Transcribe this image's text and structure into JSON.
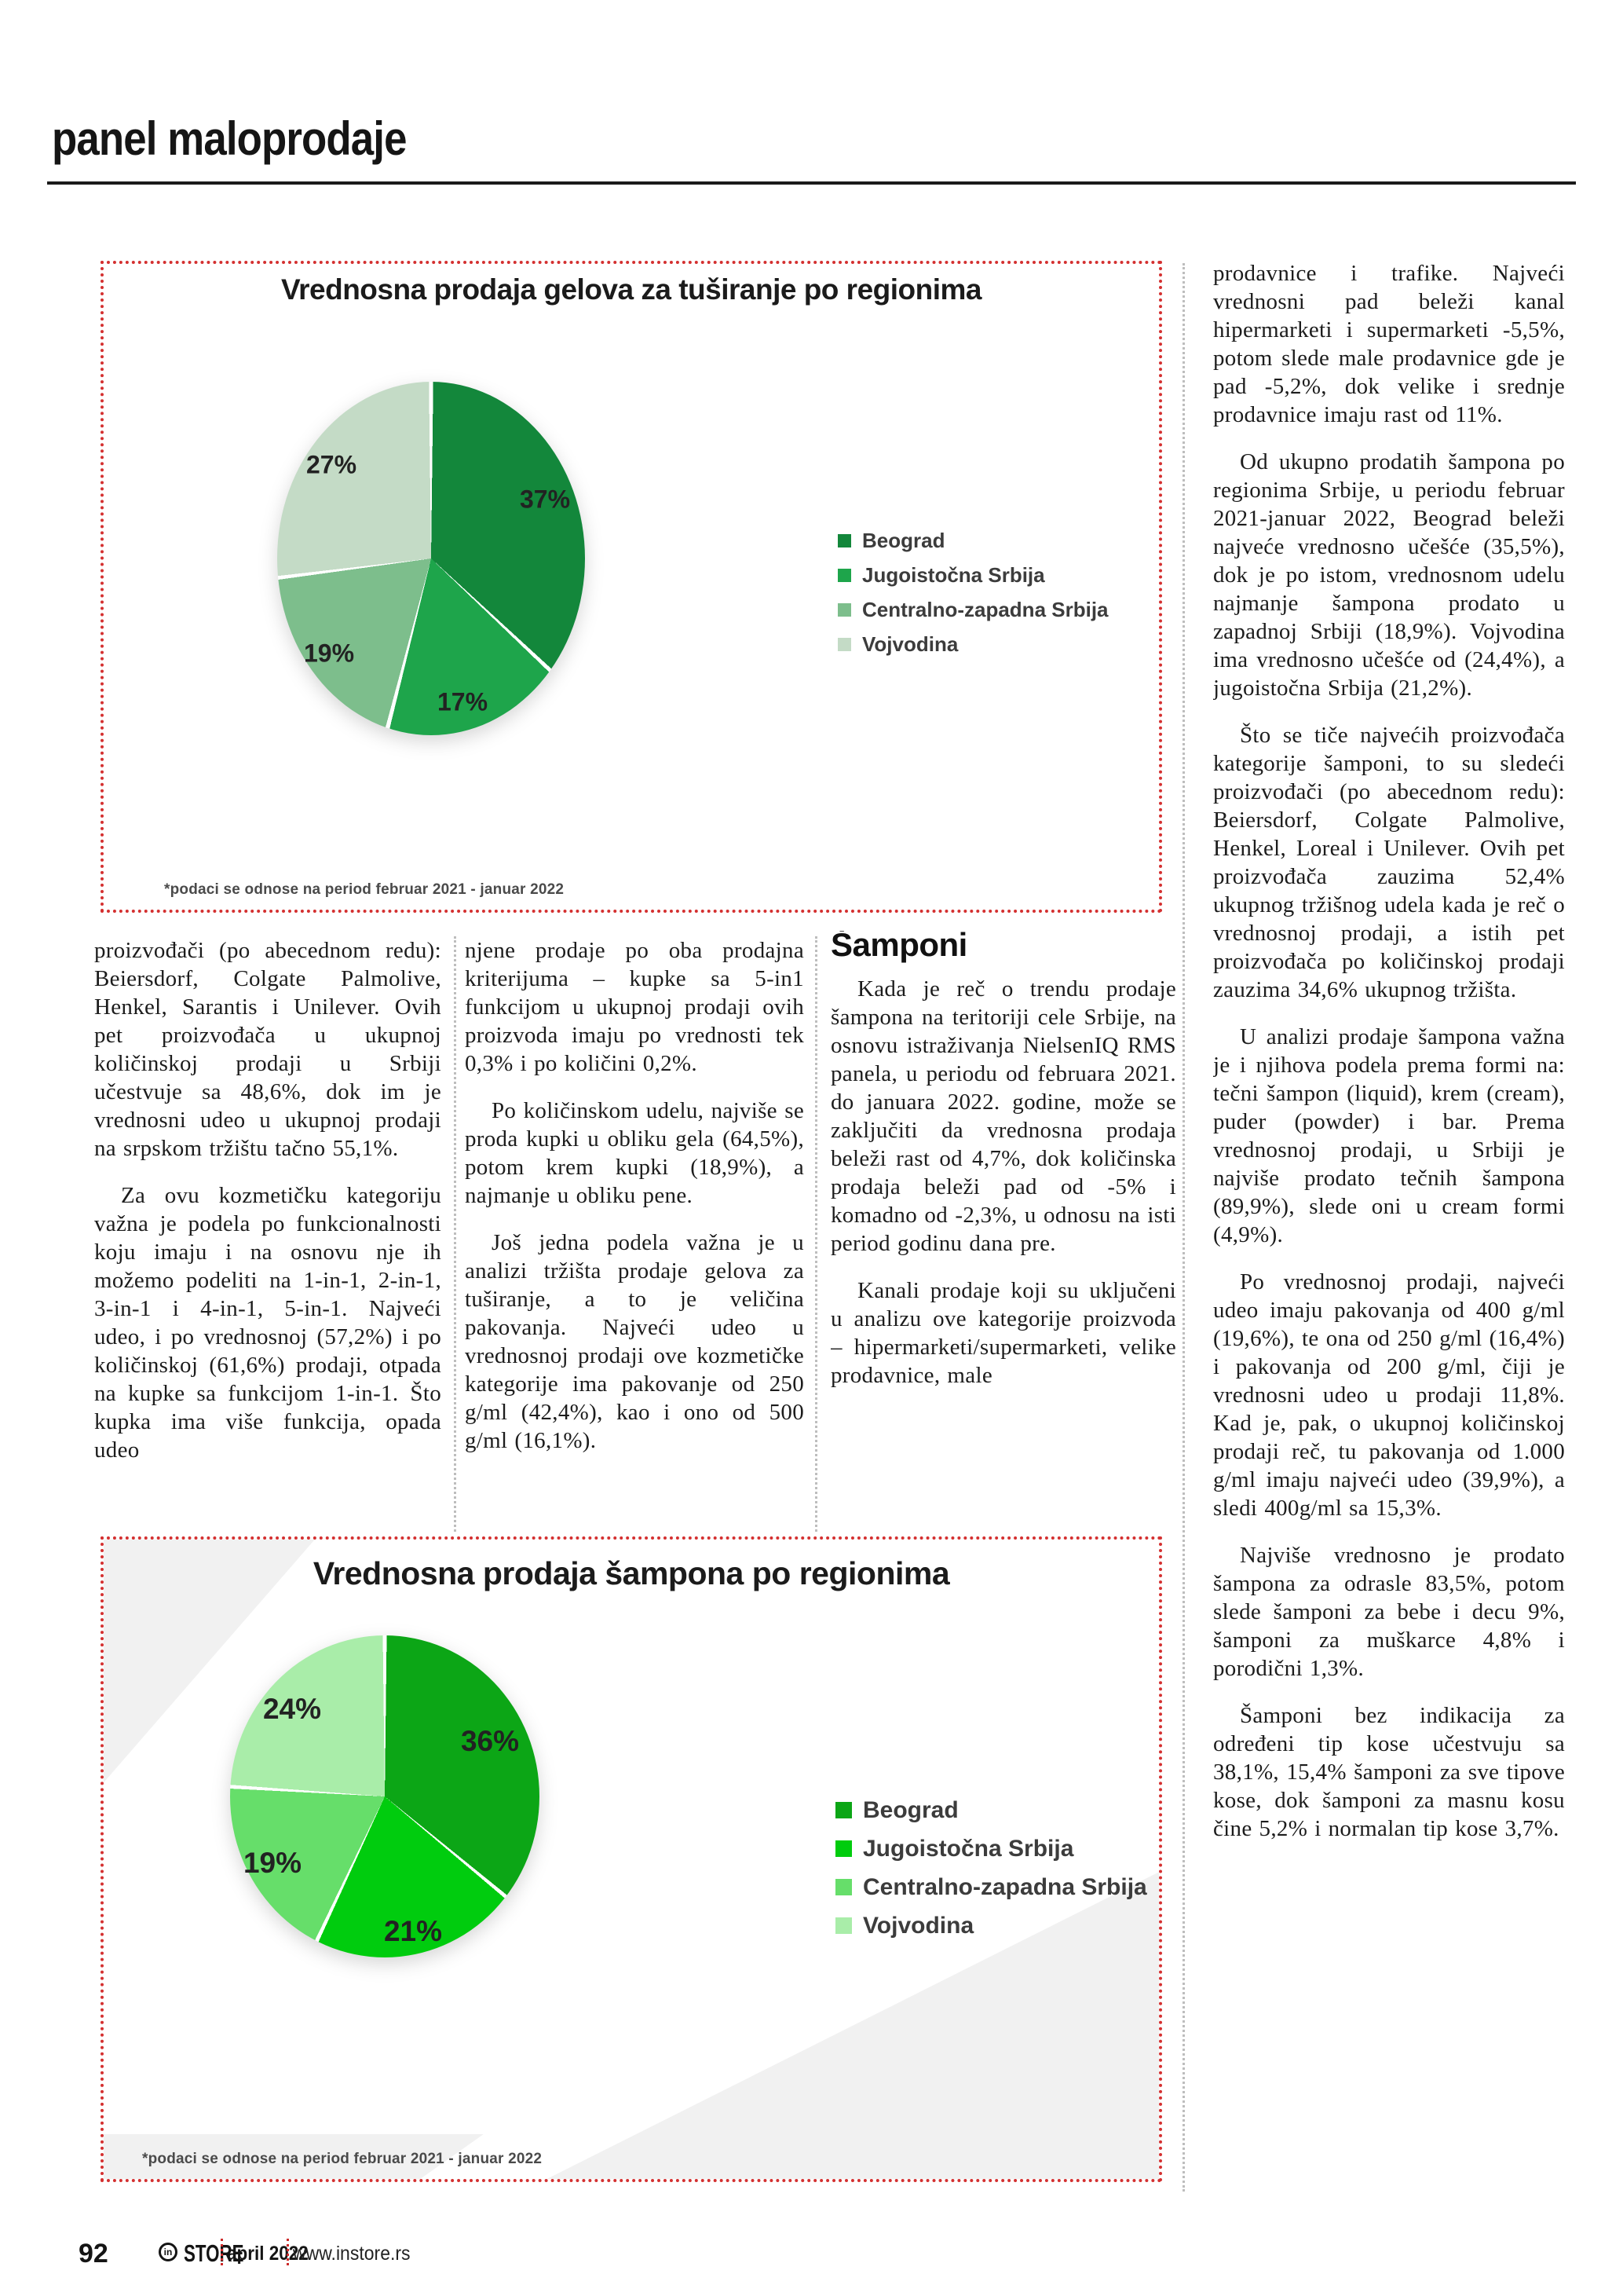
{
  "header": {
    "title": "panel maloprodaje"
  },
  "chart_data": [
    {
      "type": "pie",
      "title": "Vrednosna prodaja gelova za tuširanje po regionima",
      "footnote": "*podaci se odnose na period februar 2021 - januar 2022",
      "categories": [
        "Beograd",
        "Jugoistočna Srbija",
        "Centralno-zapadna Srbija",
        "Vojvodina"
      ],
      "values": [
        37,
        17,
        19,
        27
      ],
      "labels": [
        "37%",
        "17%",
        "19%",
        "27%"
      ],
      "colors": [
        "#13873b",
        "#1ea54b",
        "#7dbe8c",
        "#c4dbc6"
      ],
      "legend_position": "right",
      "start_angle_deg": 0,
      "direction": "clockwise"
    },
    {
      "type": "pie",
      "title": "Vrednosna prodaja šampona po regionima",
      "footnote": "*podaci se odnose na period februar 2021 - januar 2022",
      "categories": [
        "Beograd",
        "Jugoistočna Srbija",
        "Centralno-zapadna Srbija",
        "Vojvodina"
      ],
      "values": [
        36,
        21,
        19,
        24
      ],
      "labels": [
        "36%",
        "21%",
        "19%",
        "24%"
      ],
      "colors": [
        "#0ca616",
        "#00cc0e",
        "#66de6a",
        "#a9eda9"
      ],
      "legend_position": "right",
      "start_angle_deg": 0,
      "direction": "clockwise"
    }
  ],
  "articles": {
    "col1": {
      "paragraphs": [
        "proizvođači (po abecednom redu): Beiersdorf, Colgate Palmolive, Henkel, Sarantis i Unilever. Ovih pet proizvođača u ukupnoj količinskoj prodaji u Srbiji učestvuje sa 48,6%, dok im je vrednosni udeo u ukupnoj prodaji na srpskom tržištu tačno 55,1%.",
        "Za ovu kozmetičku kategoriju važna je podela po funkcionalnosti koju imaju i na osnovu nje ih možemo podeliti na 1-in-1, 2-in-1, 3-in-1 i 4-in-1, 5-in-1. Najveći udeo, i po vrednosnoj (57,2%) i po količinskoj (61,6%) prodaji, otpada na kupke sa funkcijom 1-in-1. Što kupka ima više funkcija, opada udeo"
      ]
    },
    "col2": {
      "paragraphs": [
        "njene prodaje po oba prodajna kriterijuma – kupke sa 5-in1 funkcijom u ukupnoj prodaji ovih proizvoda imaju po vrednosti tek 0,3% i po količini 0,2%.",
        "Po količinskom udelu, najviše se proda kupki u obliku gela (64,5%), potom krem kupki (18,9%), a najmanje u obliku pene.",
        "Još jedna podela važna je u analizi tržišta prodaje gelova za tuširanje, a to je veličina pakovanja. Najveći udeo u vrednosnoj prodaji ove kozmetičke kategorije ima pakovanje od 250 g/ml (42,4%), kao i ono od 500 g/ml (16,1%)."
      ]
    },
    "col3": {
      "heading": "Šamponi",
      "paragraphs": [
        "Kada je reč o trendu prodaje šampona na teritoriji cele Srbije, na osnovu istraživanja NielsenIQ RMS panela, u periodu od februara 2021. do januara 2022. godine, može se zaključiti da vrednosna prodaja beleži rast od 4,7%, dok količinska prodaja beleži pad od -5% i komadno od -2,3%, u odnosu na isti period godinu dana pre.",
        "Kanali prodaje koji su uključeni u analizu ove kategorije proizvoda – hipermarketi/supermarketi, velike prodavnice, male"
      ]
    },
    "right": {
      "paragraphs": [
        "prodavnice i trafike. Najveći vrednosni pad beleži kanal hipermarketi i supermarketi -5,5%, potom slede male prodavnice gde je pad -5,2%, dok velike i srednje prodavnice imaju rast od 11%.",
        "Od ukupno prodatih šampona po regionima Srbije, u periodu februar 2021-januar 2022, Beograd beleži najveće vrednosno učešće (35,5%), dok je po istom, vrednosnom udelu najmanje šampona prodato u zapadnoj Srbiji (18,9%). Vojvodina ima vrednosno učešće od (24,4%), a jugoistočna Srbija (21,2%).",
        "Što se tiče najvećih proizvođača kategorije šamponi, to su sledeći proizvođači (po abecednom redu): Beiersdorf, Colgate Palmolive, Henkel, Loreal i Unilever. Ovih pet proizvođača zauzima 52,4% ukupnog tržišnog udela kada je reč o vrednosnoj prodaji, a istih pet proizvođača po količinskoj prodaji zauzima 34,6% ukupnog tržišta.",
        "U analizi prodaje šampona važna je i njihova podela prema formi na: tečni šampon (liquid), krem (cream), puder (powder) i bar. Prema vrednosnoj prodaji, u Srbiji je najviše prodato tečnih šampona (89,9%), slede oni u cream formi (4,9%).",
        "Po vrednosnoj prodaji, najveći udeo imaju pakovanja od 400 g/ml (19,6%), te ona od 250 g/ml (16,4%) i pakovanja od 200 g/ml, čiji je vrednosni udeo u prodaji 11,8%. Kad je, pak, o ukupnoj količinskoj prodaji reč, tu pakovanja od 1.000 g/ml imaju najveći udeo (39,9%), a sledi 400g/ml sa 15,3%.",
        "Najviše vrednosno je prodato šampona za odrasle 83,5%, potom slede šamponi za bebe i decu 9%, šamponi za muškarce 4,8% i porodični 1,3%.",
        "Šamponi bez indikacija za određeni tip kose učestvuju sa 38,1%, 15,4% šamponi za sve tipove kose, dok šamponi za masnu kosu čine 5,2% i normalan tip kose 3,7%."
      ]
    }
  },
  "footer": {
    "page_number": "92",
    "logo_icon": "in",
    "brand": "STORE",
    "issue": "april 2022",
    "website": "www.instore.rs"
  },
  "accent_colors": {
    "chart_border_red": "#d43030",
    "separator_gray": "#bdbdbd",
    "footer_separator_red": "#cc2a2a"
  }
}
